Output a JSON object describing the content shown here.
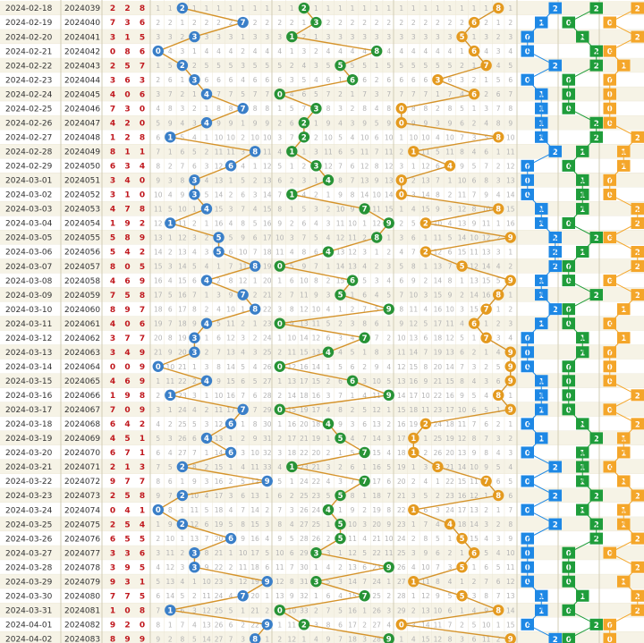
{
  "chart_data": {
    "type": "line",
    "title": "",
    "xlabel": "",
    "ylabel": "",
    "digit_range": [
      0,
      9
    ],
    "colors": {
      "hundreds": "#3a7fc8",
      "tens": "#279336",
      "units": "#e49a1f",
      "line": "#d5932a",
      "row_alt": "#f6f3e6",
      "row_base": "#ffffff",
      "number_text": "#c0181e",
      "small_blue": "#1e88e5",
      "small_green": "#1f9d3b",
      "small_orange": "#f4a62a"
    },
    "rows": [
      {
        "date": "2024-02-18",
        "issue": "2024039",
        "digits": [
          2,
          2,
          8
        ]
      },
      {
        "date": "2024-02-19",
        "issue": "2024040",
        "digits": [
          7,
          3,
          6
        ]
      },
      {
        "date": "2024-02-20",
        "issue": "2024041",
        "digits": [
          3,
          1,
          5
        ]
      },
      {
        "date": "2024-02-21",
        "issue": "2024042",
        "digits": [
          0,
          8,
          6
        ]
      },
      {
        "date": "2024-02-22",
        "issue": "2024043",
        "digits": [
          2,
          5,
          7
        ]
      },
      {
        "date": "2024-02-23",
        "issue": "2024044",
        "digits": [
          3,
          6,
          3
        ]
      },
      {
        "date": "2024-02-24",
        "issue": "2024045",
        "digits": [
          4,
          0,
          6
        ]
      },
      {
        "date": "2024-02-25",
        "issue": "2024046",
        "digits": [
          7,
          3,
          0
        ]
      },
      {
        "date": "2024-02-26",
        "issue": "2024047",
        "digits": [
          4,
          2,
          0
        ]
      },
      {
        "date": "2024-02-27",
        "issue": "2024048",
        "digits": [
          1,
          2,
          8
        ]
      },
      {
        "date": "2024-02-28",
        "issue": "2024049",
        "digits": [
          8,
          1,
          1
        ]
      },
      {
        "date": "2024-02-29",
        "issue": "2024050",
        "digits": [
          6,
          3,
          4
        ]
      },
      {
        "date": "2024-03-01",
        "issue": "2024051",
        "digits": [
          3,
          4,
          0
        ]
      },
      {
        "date": "2024-03-02",
        "issue": "2024052",
        "digits": [
          3,
          1,
          0
        ]
      },
      {
        "date": "2024-03-03",
        "issue": "2024053",
        "digits": [
          4,
          7,
          8
        ]
      },
      {
        "date": "2024-03-04",
        "issue": "2024054",
        "digits": [
          1,
          9,
          2
        ]
      },
      {
        "date": "2024-03-05",
        "issue": "2024055",
        "digits": [
          5,
          8,
          9
        ]
      },
      {
        "date": "2024-03-06",
        "issue": "2024056",
        "digits": [
          5,
          4,
          2
        ]
      },
      {
        "date": "2024-03-07",
        "issue": "2024057",
        "digits": [
          8,
          0,
          5
        ]
      },
      {
        "date": "2024-03-08",
        "issue": "2024058",
        "digits": [
          4,
          6,
          9
        ]
      },
      {
        "date": "2024-03-09",
        "issue": "2024059",
        "digits": [
          7,
          5,
          8
        ]
      },
      {
        "date": "2024-03-10",
        "issue": "2024060",
        "digits": [
          8,
          9,
          7
        ]
      },
      {
        "date": "2024-03-11",
        "issue": "2024061",
        "digits": [
          4,
          0,
          6
        ]
      },
      {
        "date": "2024-03-12",
        "issue": "2024062",
        "digits": [
          3,
          7,
          7
        ]
      },
      {
        "date": "2024-03-13",
        "issue": "2024063",
        "digits": [
          3,
          4,
          9
        ]
      },
      {
        "date": "2024-03-14",
        "issue": "2024064",
        "digits": [
          0,
          0,
          9
        ]
      },
      {
        "date": "2024-03-15",
        "issue": "2024065",
        "digits": [
          4,
          6,
          9
        ]
      },
      {
        "date": "2024-03-16",
        "issue": "2024066",
        "digits": [
          1,
          9,
          8
        ]
      },
      {
        "date": "2024-03-17",
        "issue": "2024067",
        "digits": [
          7,
          0,
          9
        ]
      },
      {
        "date": "2024-03-18",
        "issue": "2024068",
        "digits": [
          6,
          4,
          2
        ]
      },
      {
        "date": "2024-03-19",
        "issue": "2024069",
        "digits": [
          4,
          5,
          1
        ]
      },
      {
        "date": "2024-03-20",
        "issue": "2024070",
        "digits": [
          6,
          7,
          1
        ]
      },
      {
        "date": "2024-03-21",
        "issue": "2024071",
        "digits": [
          2,
          1,
          3
        ]
      },
      {
        "date": "2024-03-22",
        "issue": "2024072",
        "digits": [
          9,
          7,
          7
        ]
      },
      {
        "date": "2024-03-23",
        "issue": "2024073",
        "digits": [
          2,
          5,
          8
        ]
      },
      {
        "date": "2024-03-24",
        "issue": "2024074",
        "digits": [
          0,
          4,
          1
        ]
      },
      {
        "date": "2024-03-25",
        "issue": "2024075",
        "digits": [
          2,
          5,
          4
        ]
      },
      {
        "date": "2024-03-26",
        "issue": "2024076",
        "digits": [
          6,
          5,
          5
        ]
      },
      {
        "date": "2024-03-27",
        "issue": "2024077",
        "digits": [
          3,
          3,
          6
        ]
      },
      {
        "date": "2024-03-28",
        "issue": "2024078",
        "digits": [
          3,
          9,
          5
        ]
      },
      {
        "date": "2024-03-29",
        "issue": "2024079",
        "digits": [
          9,
          3,
          1
        ]
      },
      {
        "date": "2024-03-30",
        "issue": "2024080",
        "digits": [
          7,
          7,
          5
        ]
      },
      {
        "date": "2024-03-31",
        "issue": "2024081",
        "digits": [
          1,
          0,
          8
        ]
      },
      {
        "date": "2024-04-01",
        "issue": "2024082",
        "digits": [
          9,
          2,
          0
        ]
      },
      {
        "date": "2024-04-02",
        "issue": "2024083",
        "digits": [
          8,
          9,
          9
        ]
      }
    ]
  }
}
